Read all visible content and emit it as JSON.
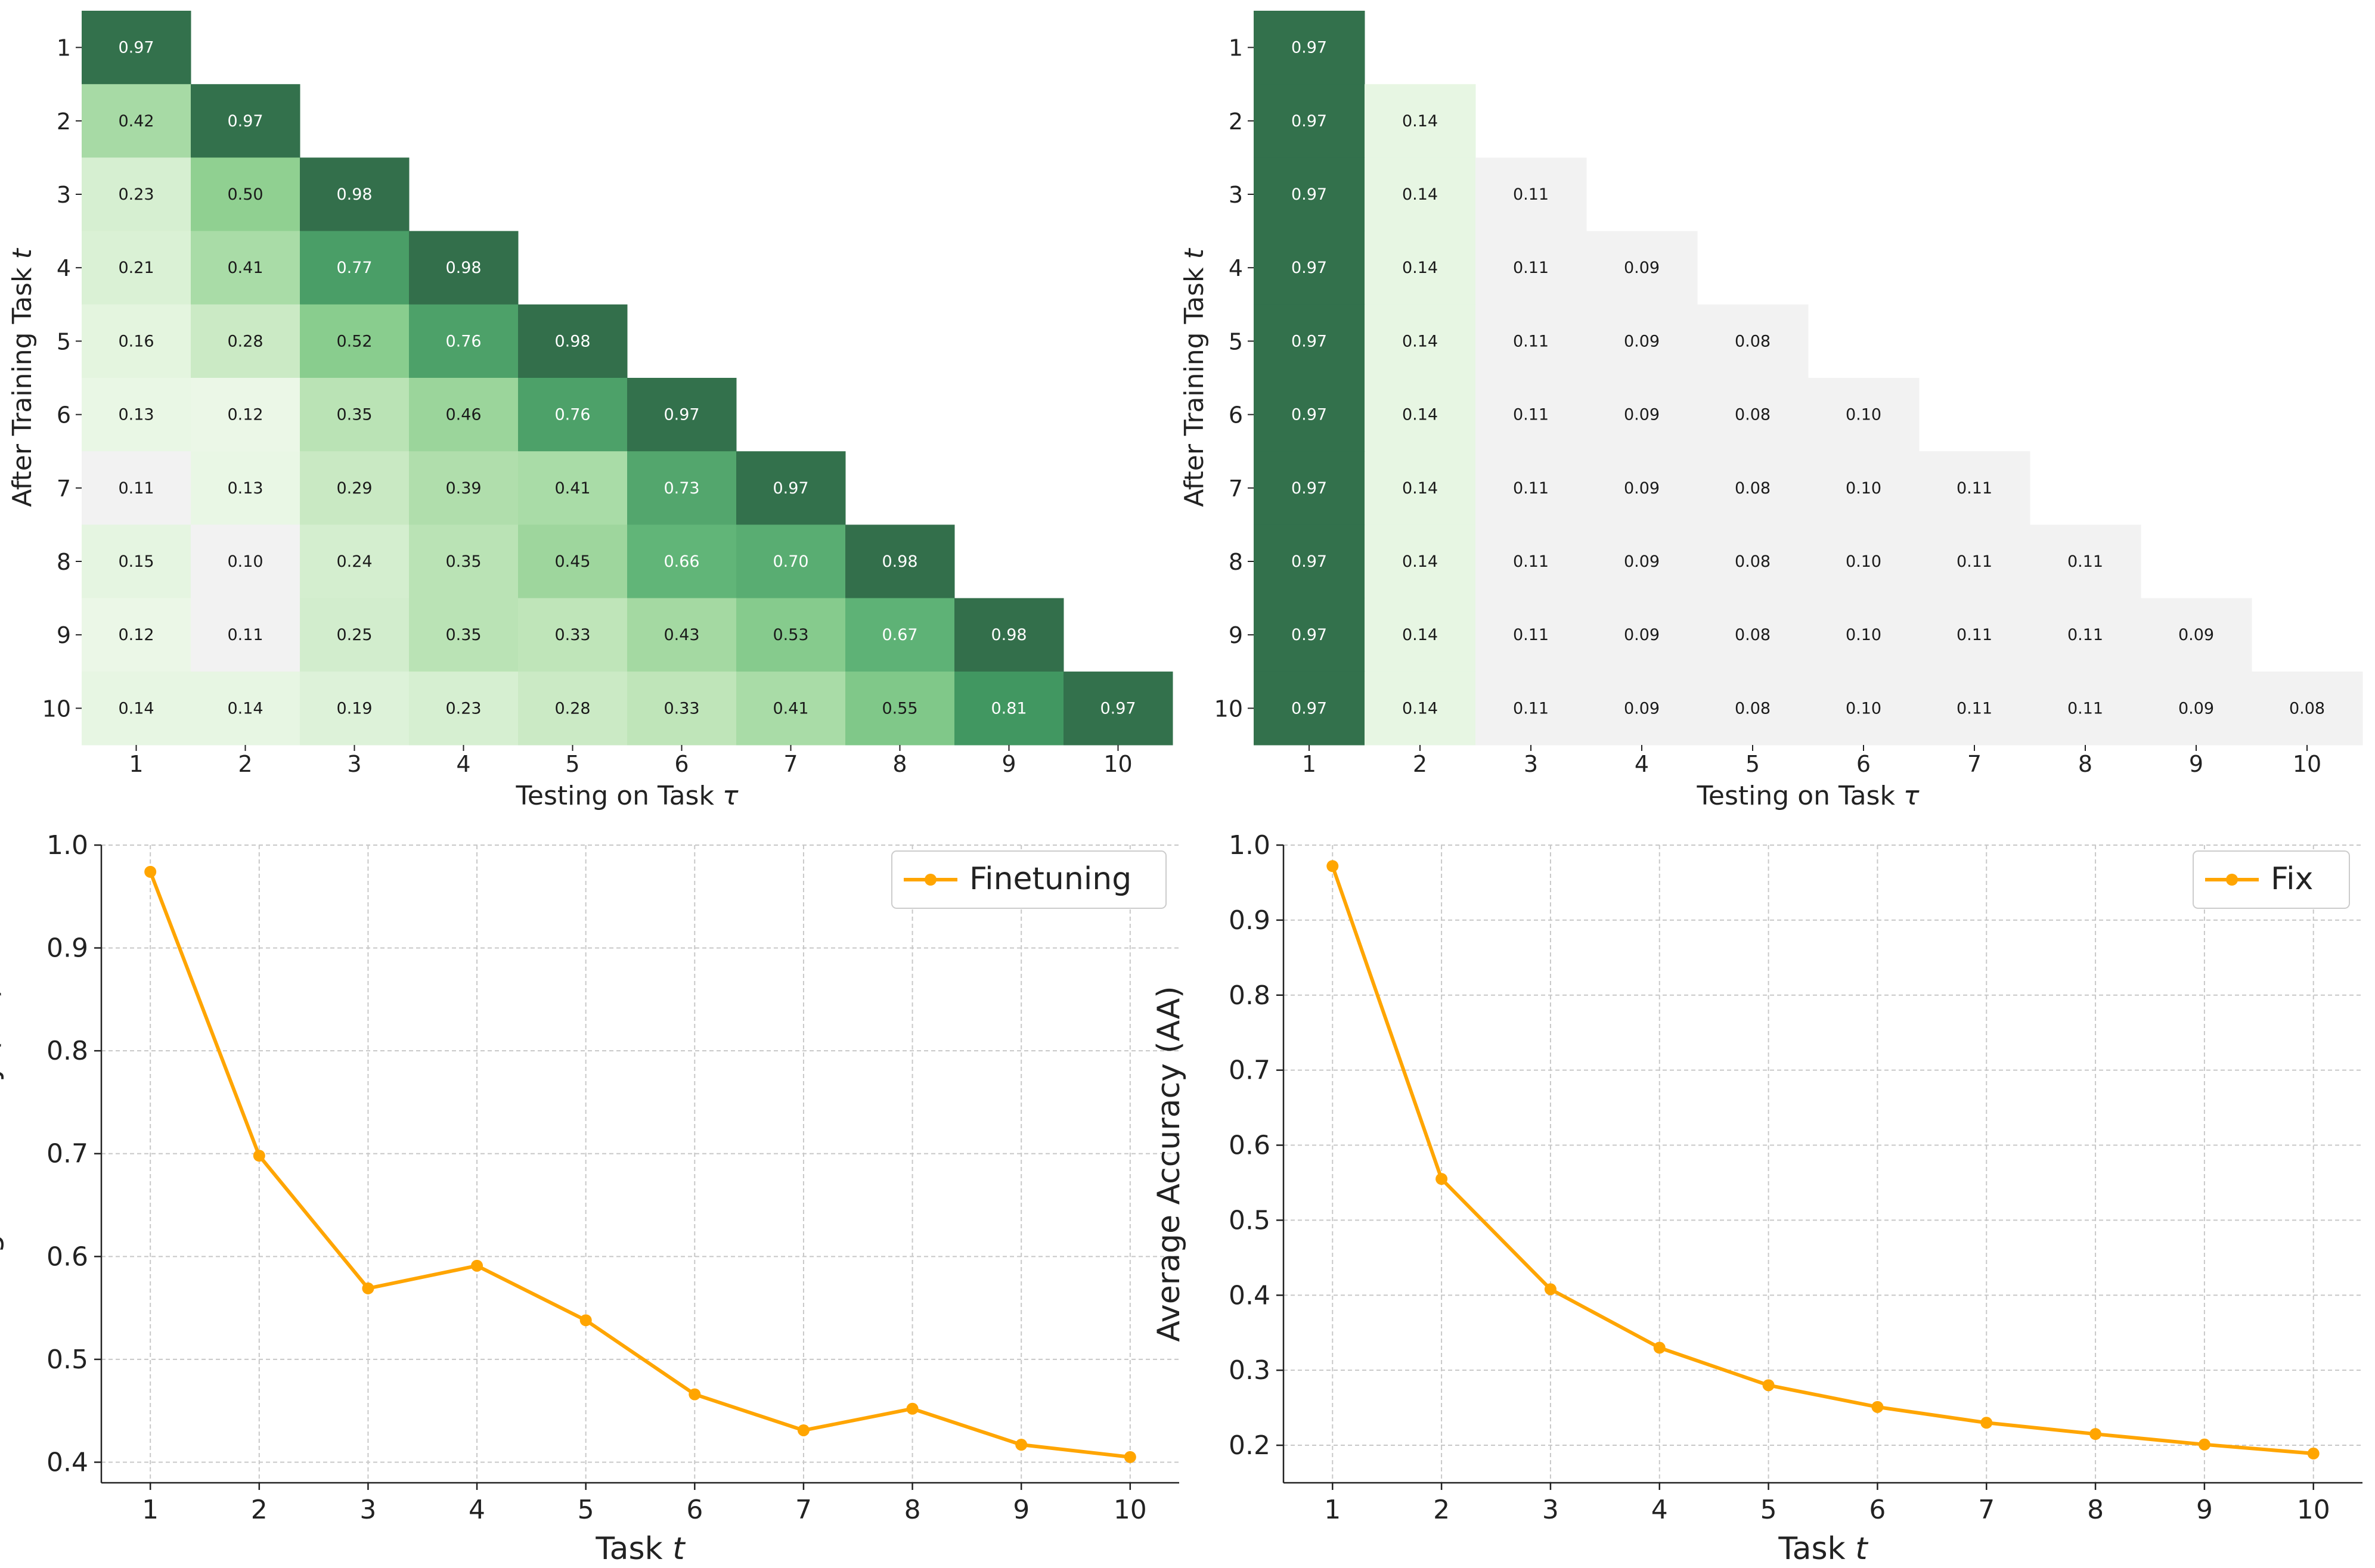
{
  "chart_data": [
    {
      "type": "heatmap",
      "xlabel": "Testing on Task τ",
      "ylabel": "After Training Task t",
      "x_ticks": [
        "1",
        "2",
        "3",
        "4",
        "5",
        "6",
        "7",
        "8",
        "9",
        "10"
      ],
      "y_ticks": [
        "1",
        "2",
        "3",
        "4",
        "5",
        "6",
        "7",
        "8",
        "9",
        "10"
      ],
      "colormap": "Greens",
      "color_range": [
        0,
        1
      ],
      "empty_cell_color": "#f2f2f2",
      "values": [
        [
          0.97
        ],
        [
          0.42,
          0.97
        ],
        [
          0.23,
          0.5,
          0.98
        ],
        [
          0.21,
          0.41,
          0.77,
          0.98
        ],
        [
          0.16,
          0.28,
          0.52,
          0.76,
          0.98
        ],
        [
          0.13,
          0.12,
          0.35,
          0.46,
          0.76,
          0.97
        ],
        [
          0.11,
          0.13,
          0.29,
          0.39,
          0.41,
          0.73,
          0.97
        ],
        [
          0.15,
          0.1,
          0.24,
          0.35,
          0.45,
          0.66,
          0.7,
          0.98
        ],
        [
          0.12,
          0.11,
          0.25,
          0.35,
          0.33,
          0.43,
          0.53,
          0.67,
          0.98
        ],
        [
          0.14,
          0.14,
          0.19,
          0.23,
          0.28,
          0.33,
          0.41,
          0.55,
          0.81,
          0.97
        ]
      ]
    },
    {
      "type": "heatmap",
      "xlabel": "Testing on Task τ",
      "ylabel": "After Training Task t",
      "x_ticks": [
        "1",
        "2",
        "3",
        "4",
        "5",
        "6",
        "7",
        "8",
        "9",
        "10"
      ],
      "y_ticks": [
        "1",
        "2",
        "3",
        "4",
        "5",
        "6",
        "7",
        "8",
        "9",
        "10"
      ],
      "colormap": "Greens",
      "color_range": [
        0,
        1
      ],
      "empty_cell_color": "#f2f2f2",
      "values": [
        [
          0.97
        ],
        [
          0.97,
          0.14
        ],
        [
          0.97,
          0.14,
          0.11
        ],
        [
          0.97,
          0.14,
          0.11,
          0.09
        ],
        [
          0.97,
          0.14,
          0.11,
          0.09,
          0.08
        ],
        [
          0.97,
          0.14,
          0.11,
          0.09,
          0.08,
          0.1
        ],
        [
          0.97,
          0.14,
          0.11,
          0.09,
          0.08,
          0.1,
          0.11
        ],
        [
          0.97,
          0.14,
          0.11,
          0.09,
          0.08,
          0.1,
          0.11,
          0.11
        ],
        [
          0.97,
          0.14,
          0.11,
          0.09,
          0.08,
          0.1,
          0.11,
          0.11,
          0.09
        ],
        [
          0.97,
          0.14,
          0.11,
          0.09,
          0.08,
          0.1,
          0.11,
          0.11,
          0.09,
          0.08
        ]
      ]
    },
    {
      "type": "line",
      "xlabel": "Task t",
      "ylabel": "Average Accuracy (AA)",
      "x": [
        1,
        2,
        3,
        4,
        5,
        6,
        7,
        8,
        9,
        10
      ],
      "xlim": [
        0.55,
        10.45
      ],
      "ylim": [
        0.38,
        1.0
      ],
      "yticks": [
        0.4,
        0.5,
        0.6,
        0.7,
        0.8,
        0.9,
        1.0
      ],
      "grid": true,
      "legend_position": "top-right",
      "series": [
        {
          "name": "Finetuning",
          "color": "#ffa500",
          "values": [
            0.974,
            0.698,
            0.569,
            0.591,
            0.538,
            0.466,
            0.431,
            0.452,
            0.417,
            0.405
          ]
        }
      ]
    },
    {
      "type": "line",
      "xlabel": "Task t",
      "ylabel": "Average Accuracy (AA)",
      "x": [
        1,
        2,
        3,
        4,
        5,
        6,
        7,
        8,
        9,
        10
      ],
      "xlim": [
        0.55,
        10.45
      ],
      "ylim": [
        0.15,
        1.0
      ],
      "yticks": [
        0.2,
        0.3,
        0.4,
        0.5,
        0.6,
        0.7,
        0.8,
        0.9,
        1.0
      ],
      "grid": true,
      "legend_position": "top-right",
      "series": [
        {
          "name": "Fix",
          "color": "#ffa500",
          "values": [
            0.972,
            0.555,
            0.408,
            0.33,
            0.28,
            0.251,
            0.23,
            0.215,
            0.201,
            0.189
          ]
        }
      ]
    }
  ]
}
